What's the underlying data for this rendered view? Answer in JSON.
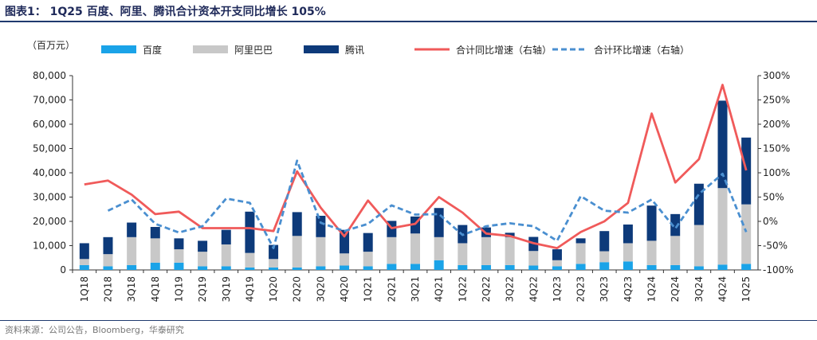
{
  "header": {
    "title": "图表1：  1Q25 百度、阿里、腾讯合计资本开支同比增长 105%"
  },
  "footer": {
    "source": "资料来源：公司公告，Bloomberg，华泰研究"
  },
  "chart_data": {
    "type": "bar",
    "stacked": true,
    "unit_label": "（百万元）",
    "categories": [
      "1Q18",
      "2Q18",
      "3Q18",
      "4Q18",
      "1Q19",
      "2Q19",
      "3Q19",
      "4Q19",
      "1Q20",
      "2Q20",
      "3Q20",
      "4Q20",
      "1Q21",
      "2Q21",
      "3Q21",
      "4Q21",
      "1Q22",
      "2Q22",
      "3Q22",
      "4Q22",
      "1Q23",
      "2Q23",
      "3Q23",
      "4Q23",
      "1Q24",
      "2Q24",
      "3Q24",
      "4Q24",
      "1Q25"
    ],
    "ylim_left": [
      0,
      80000
    ],
    "yticks_left": [
      "0",
      "10,000",
      "20,000",
      "30,000",
      "40,000",
      "50,000",
      "60,000",
      "70,000",
      "80,000"
    ],
    "ylim_right": [
      -100,
      300
    ],
    "yticks_right": [
      "-100%",
      "-50%",
      "0%",
      "50%",
      "100%",
      "150%",
      "200%",
      "250%",
      "300%"
    ],
    "legend_position": "top",
    "series": [
      {
        "name": "百度",
        "kind": "bar",
        "color": "#1aa3e8",
        "values": [
          2000,
          1500,
          2000,
          3000,
          3000,
          1500,
          1500,
          1000,
          1000,
          1000,
          1500,
          1800,
          1500,
          2500,
          2500,
          4000,
          2000,
          2000,
          2000,
          1800,
          1500,
          2500,
          3200,
          3500,
          2000,
          2000,
          1500,
          2200,
          2500
        ]
      },
      {
        "name": "阿里巴巴",
        "kind": "bar",
        "color": "#c8c8c8",
        "values": [
          2500,
          5000,
          11500,
          10000,
          5500,
          6000,
          9000,
          6000,
          3500,
          13000,
          12000,
          5000,
          6000,
          11000,
          12500,
          9500,
          9000,
          11500,
          11500,
          6000,
          2500,
          8500,
          4500,
          7500,
          10000,
          12000,
          17000,
          31500,
          24500
        ]
      },
      {
        "name": "腾讯",
        "kind": "bar",
        "color": "#0d3a7a",
        "values": [
          6500,
          7000,
          6000,
          4700,
          4500,
          4500,
          6000,
          17000,
          5800,
          9800,
          8800,
          9700,
          7700,
          6700,
          7000,
          12000,
          7500,
          4000,
          1800,
          5800,
          4500,
          2000,
          8300,
          7700,
          14500,
          9000,
          17000,
          36000,
          27500
        ]
      },
      {
        "name": "合计同比增速（右轴）",
        "kind": "line",
        "axis": "right",
        "color": "#f05a5a",
        "style": "solid",
        "values": [
          76,
          84,
          55,
          15,
          20,
          -14,
          -14,
          -14,
          -20,
          103,
          28,
          -31,
          43,
          -14,
          -5,
          50,
          18,
          -25,
          -30,
          -45,
          -55,
          -22,
          0,
          38,
          222,
          80,
          128,
          281,
          105
        ]
      },
      {
        "name": "合计环比增速（右轴）",
        "kind": "line",
        "axis": "right",
        "color": "#4a8fd0",
        "style": "dashed",
        "values": [
          null,
          22,
          45,
          -5,
          -23,
          -10,
          47,
          38,
          -55,
          125,
          -3,
          -20,
          -5,
          33,
          14,
          15,
          -28,
          -10,
          -4,
          -10,
          -40,
          52,
          22,
          18,
          45,
          -15,
          56,
          98,
          -22
        ]
      }
    ]
  }
}
